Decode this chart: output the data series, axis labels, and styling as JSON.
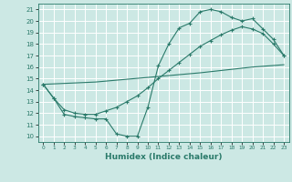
{
  "xlabel": "Humidex (Indice chaleur)",
  "bg_color": "#cce8e4",
  "grid_color": "#ffffff",
  "line_color": "#2a7a6a",
  "xlim": [
    -0.5,
    23.5
  ],
  "ylim": [
    9.5,
    21.5
  ],
  "xticks": [
    0,
    1,
    2,
    3,
    4,
    5,
    6,
    7,
    8,
    9,
    10,
    11,
    12,
    13,
    14,
    15,
    16,
    17,
    18,
    19,
    20,
    21,
    22,
    23
  ],
  "yticks": [
    10,
    11,
    12,
    13,
    14,
    15,
    16,
    17,
    18,
    19,
    20,
    21
  ],
  "line1_x": [
    0,
    1,
    2,
    3,
    4,
    5,
    6,
    7,
    8,
    9,
    10,
    11,
    12,
    13,
    14,
    15,
    16,
    17,
    18,
    19,
    20,
    21,
    22,
    23
  ],
  "line1_y": [
    14.5,
    13.3,
    11.9,
    11.7,
    11.6,
    11.5,
    11.5,
    10.2,
    10.0,
    10.0,
    12.5,
    16.1,
    18.0,
    19.4,
    19.8,
    20.8,
    21.0,
    20.8,
    20.3,
    20.0,
    20.2,
    19.3,
    18.4,
    17.0
  ],
  "line2_x": [
    0,
    1,
    2,
    3,
    4,
    5,
    6,
    7,
    8,
    9,
    10,
    11,
    12,
    13,
    14,
    15,
    16,
    17,
    18,
    19,
    20,
    21,
    22,
    23
  ],
  "line2_y": [
    14.5,
    13.3,
    12.3,
    12.0,
    11.9,
    11.9,
    12.2,
    12.5,
    13.0,
    13.5,
    14.2,
    15.0,
    15.7,
    16.4,
    17.1,
    17.8,
    18.3,
    18.8,
    19.2,
    19.5,
    19.3,
    18.9,
    18.0,
    17.0
  ],
  "line3_x": [
    0,
    5,
    10,
    15,
    20,
    23
  ],
  "line3_y": [
    14.5,
    14.7,
    15.1,
    15.5,
    16.0,
    16.2
  ]
}
